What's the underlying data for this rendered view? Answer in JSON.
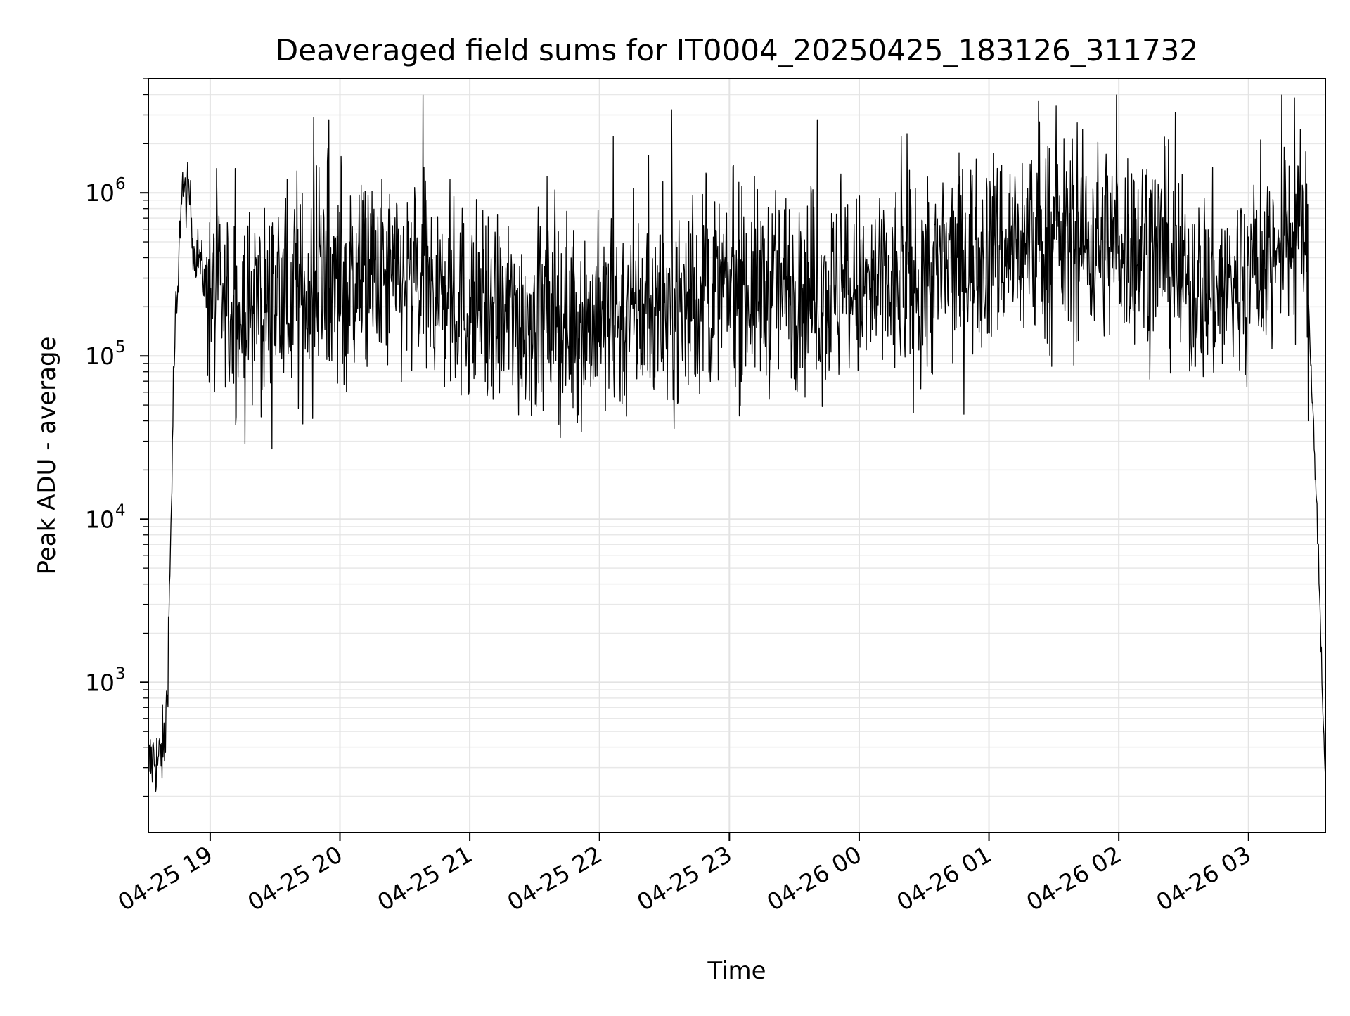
{
  "chart_data": {
    "type": "line",
    "title": "Deaveraged field sums for IT0004_20250425_183126_311732",
    "xlabel": "Time",
    "ylabel": "Peak ADU - average",
    "yscale": "log",
    "ylim": [
      120,
      5000000
    ],
    "xlim": [
      "2025-04-25 18:31:26",
      "2025-04-26 03:35:30"
    ],
    "grid": "on (major and minor)",
    "x_ticks": [
      {
        "time": "2025-04-25 19:00:00",
        "label": "04-25 19"
      },
      {
        "time": "2025-04-25 20:00:00",
        "label": "04-25 20"
      },
      {
        "time": "2025-04-25 21:00:00",
        "label": "04-25 21"
      },
      {
        "time": "2025-04-25 22:00:00",
        "label": "04-25 22"
      },
      {
        "time": "2025-04-25 23:00:00",
        "label": "04-25 23"
      },
      {
        "time": "2025-04-26 00:00:00",
        "label": "04-26 00"
      },
      {
        "time": "2025-04-26 01:00:00",
        "label": "04-26 01"
      },
      {
        "time": "2025-04-26 02:00:00",
        "label": "04-26 02"
      },
      {
        "time": "2025-04-26 03:00:00",
        "label": "04-26 03"
      }
    ],
    "y_ticks": [
      {
        "value": 1000,
        "base": "10",
        "exp": "3"
      },
      {
        "value": 10000,
        "base": "10",
        "exp": "4"
      },
      {
        "value": 100000,
        "base": "10",
        "exp": "5"
      },
      {
        "value": 1000000,
        "base": "10",
        "exp": "6"
      }
    ],
    "series": [
      {
        "color": "#000000",
        "x": [
          "2025-04-25 18:31:26",
          "2025-04-25 18:34:00",
          "2025-04-25 18:36:00",
          "2025-04-25 18:37:30",
          "2025-04-25 18:39:00",
          "2025-04-25 18:40:00",
          "2025-04-25 18:41:30",
          "2025-04-25 18:43:00",
          "2025-04-25 18:44:00",
          "2025-04-25 18:45:00",
          "2025-04-25 18:46:00",
          "2025-04-25 18:47:00",
          "2025-04-25 18:48:00",
          "2025-04-25 18:49:00",
          "2025-04-25 18:50:00",
          "2025-04-25 18:51:00",
          "2025-04-25 18:52:00",
          "2025-04-25 18:53:00",
          "2025-04-25 18:54:00",
          "2025-04-25 18:55:00",
          "2025-04-25 18:56:00",
          "2025-04-25 18:57:00",
          "2025-04-25 19:00:00",
          "2025-04-25 19:05:00",
          "2025-04-25 19:10:00",
          "2025-04-25 19:15:00",
          "2025-04-25 19:20:00",
          "2025-04-25 19:30:00",
          "2025-04-25 19:45:00",
          "2025-04-25 20:00:00",
          "2025-04-25 20:15:00",
          "2025-04-25 20:30:00",
          "2025-04-25 20:45:00",
          "2025-04-25 21:00:00",
          "2025-04-25 21:15:00",
          "2025-04-25 21:30:00",
          "2025-04-25 21:45:00",
          "2025-04-25 22:00:00",
          "2025-04-25 22:30:00",
          "2025-04-25 23:00:00",
          "2025-04-25 23:30:00",
          "2025-04-26 00:00:00",
          "2025-04-26 00:30:00",
          "2025-04-26 00:45:00",
          "2025-04-26 01:00:00",
          "2025-04-26 01:30:00",
          "2025-04-26 02:00:00",
          "2025-04-26 02:20:00",
          "2025-04-26 02:30:00",
          "2025-04-26 02:45:00",
          "2025-04-26 03:00:00",
          "2025-04-26 03:20:00",
          "2025-04-26 03:26:00",
          "2025-04-26 03:28:00",
          "2025-04-26 03:30:00",
          "2025-04-26 03:32:00",
          "2025-04-26 03:34:00",
          "2025-04-26 03:35:30"
        ],
        "y": [
          300,
          350,
          320,
          380,
          400,
          800,
          5000,
          60000,
          180000,
          200000,
          600000,
          1200000,
          1000000,
          900000,
          1100000,
          800000,
          500000,
          400000,
          450000,
          400000,
          350000,
          300000,
          260000,
          200000,
          180000,
          170000,
          200000,
          210000,
          240000,
          260000,
          300000,
          280000,
          240000,
          200000,
          180000,
          170000,
          160000,
          160000,
          200000,
          250000,
          260000,
          240000,
          280000,
          380000,
          450000,
          500000,
          500000,
          450000,
          280000,
          250000,
          300000,
          550000,
          600000,
          150000,
          40000,
          8000,
          1000,
          250
        ]
      }
    ]
  }
}
